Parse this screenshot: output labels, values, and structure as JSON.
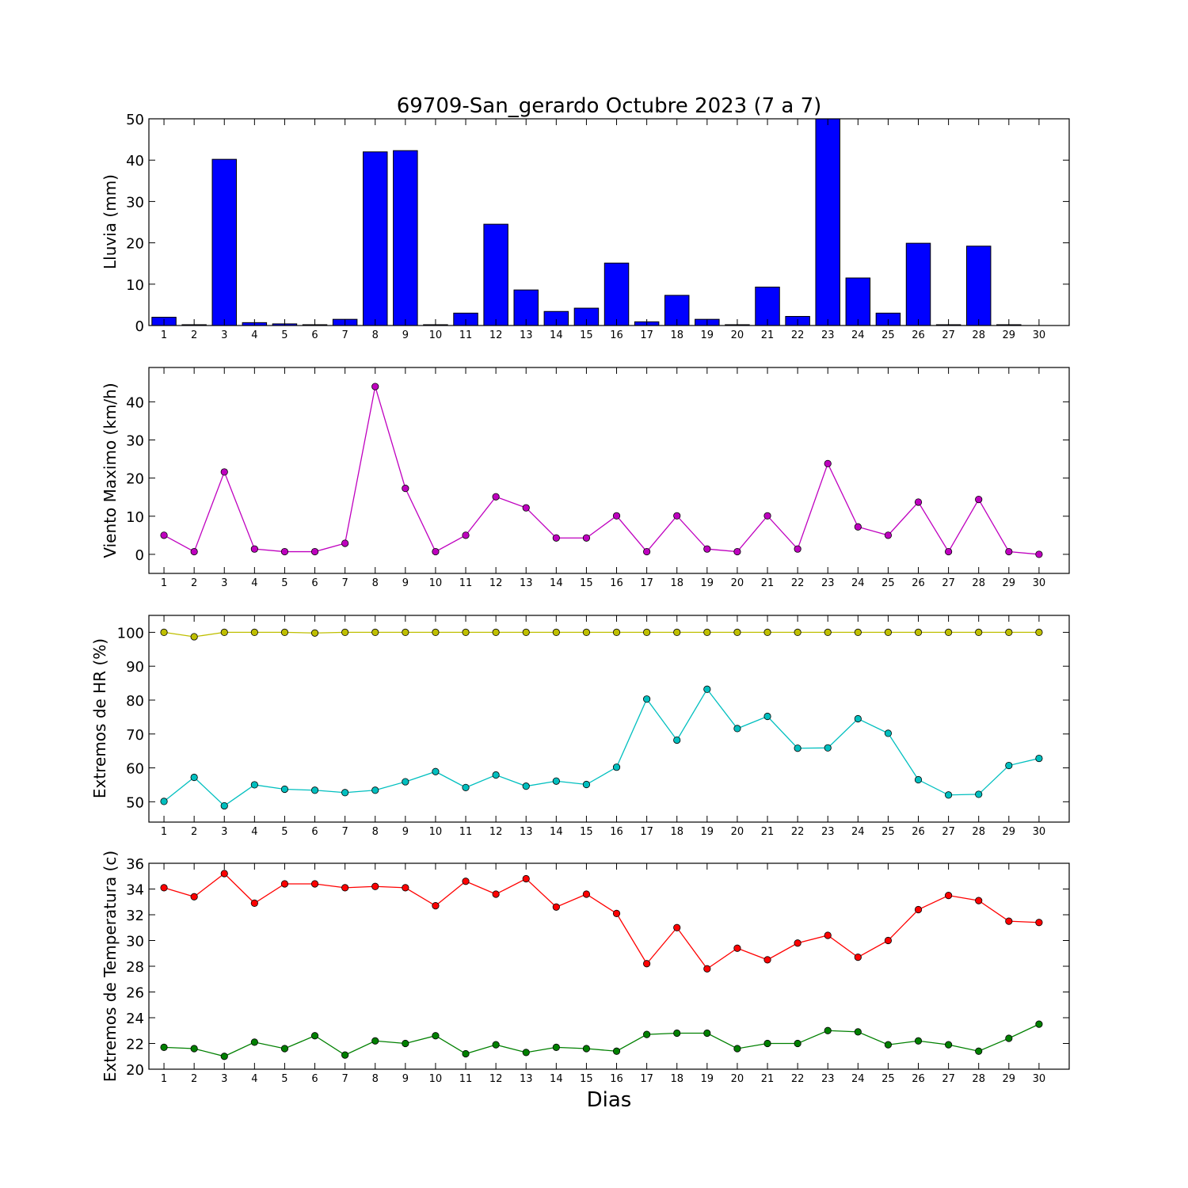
{
  "title": "69709-San_gerardo Octubre 2023  (7 a 7)",
  "xlabel": "Dias",
  "colors": {
    "bar": "#0000ff",
    "viento": "#bf00bf",
    "hr_max": "#bfbf00",
    "hr_min": "#00bfbf",
    "temp_max": "#ff0000",
    "temp_min": "#008000"
  },
  "chart_data": [
    {
      "type": "bar",
      "ylabel": "Lluvia (mm)",
      "ylim": [
        0,
        50
      ],
      "yticks": [
        0,
        10,
        20,
        30,
        40,
        50
      ],
      "categories": [
        "1",
        "2",
        "3",
        "4",
        "5",
        "6",
        "7",
        "8",
        "9",
        "10",
        "11",
        "12",
        "13",
        "14",
        "15",
        "16",
        "17",
        "18",
        "19",
        "20",
        "21",
        "22",
        "23",
        "24",
        "25",
        "26",
        "27",
        "28",
        "29",
        "30"
      ],
      "series": [
        {
          "values": [
            2.0,
            0.2,
            40.2,
            0.7,
            0.4,
            0.2,
            1.5,
            42.0,
            42.3,
            0.2,
            3.0,
            24.5,
            8.6,
            3.4,
            4.2,
            15.1,
            0.9,
            7.3,
            1.5,
            0.2,
            9.3,
            2.2,
            50.0,
            11.5,
            3.0,
            19.9,
            0.2,
            19.2,
            0.2,
            0.0
          ],
          "color": "#0000ff"
        }
      ]
    },
    {
      "type": "line",
      "ylabel": "Viento Maximo (km/h)",
      "ylim": [
        -5,
        49
      ],
      "yticks": [
        0,
        10,
        20,
        30,
        40
      ],
      "categories": [
        "1",
        "2",
        "3",
        "4",
        "5",
        "6",
        "7",
        "8",
        "9",
        "10",
        "11",
        "12",
        "13",
        "14",
        "15",
        "16",
        "17",
        "18",
        "19",
        "20",
        "21",
        "22",
        "23",
        "24",
        "25",
        "26",
        "27",
        "28",
        "29",
        "30"
      ],
      "series": [
        {
          "values": [
            5.0,
            0.7,
            21.6,
            1.4,
            0.7,
            0.7,
            2.9,
            44.0,
            17.3,
            0.7,
            5.0,
            15.1,
            12.2,
            4.3,
            4.3,
            10.1,
            0.7,
            10.1,
            1.4,
            0.7,
            10.1,
            1.4,
            23.8,
            7.2,
            5.0,
            13.7,
            0.7,
            14.4,
            0.7,
            0.0
          ],
          "color": "#bf00bf"
        }
      ]
    },
    {
      "type": "line",
      "ylabel": "Extremos de HR (%)",
      "ylim": [
        44,
        105
      ],
      "yticks": [
        50,
        60,
        70,
        80,
        90,
        100
      ],
      "categories": [
        "1",
        "2",
        "3",
        "4",
        "5",
        "6",
        "7",
        "8",
        "9",
        "10",
        "11",
        "12",
        "13",
        "14",
        "15",
        "16",
        "17",
        "18",
        "19",
        "20",
        "21",
        "22",
        "23",
        "24",
        "25",
        "26",
        "27",
        "28",
        "29",
        "30"
      ],
      "series": [
        {
          "values": [
            100,
            98.7,
            100,
            100,
            100,
            99.8,
            100,
            100,
            100,
            100,
            100,
            100,
            100,
            100,
            100,
            100,
            100,
            100,
            100,
            100,
            100,
            100,
            100,
            100,
            100,
            100,
            100,
            100,
            100,
            100
          ],
          "color": "#bfbf00"
        },
        {
          "values": [
            50.1,
            57.2,
            48.8,
            55.0,
            53.7,
            53.4,
            52.7,
            53.4,
            55.9,
            58.9,
            54.2,
            57.9,
            54.6,
            56.1,
            55.1,
            60.2,
            80.3,
            68.2,
            83.2,
            71.6,
            75.2,
            65.8,
            65.9,
            74.5,
            70.2,
            56.5,
            52.0,
            52.2,
            60.7,
            62.8
          ],
          "color": "#00bfbf"
        }
      ]
    },
    {
      "type": "line",
      "ylabel": "Extremos de Temperatura (c)",
      "ylim": [
        20,
        36
      ],
      "yticks": [
        20,
        22,
        24,
        26,
        28,
        30,
        32,
        34,
        36
      ],
      "categories": [
        "1",
        "2",
        "3",
        "4",
        "5",
        "6",
        "7",
        "8",
        "9",
        "10",
        "11",
        "12",
        "13",
        "14",
        "15",
        "16",
        "17",
        "18",
        "19",
        "20",
        "21",
        "22",
        "23",
        "24",
        "25",
        "26",
        "27",
        "28",
        "29",
        "30"
      ],
      "series": [
        {
          "values": [
            34.1,
            33.4,
            35.2,
            32.9,
            34.4,
            34.4,
            34.1,
            34.2,
            34.1,
            32.7,
            34.6,
            33.6,
            34.8,
            32.6,
            33.6,
            32.1,
            28.2,
            31.0,
            27.8,
            29.4,
            28.5,
            29.8,
            30.4,
            28.7,
            30.0,
            32.4,
            33.5,
            33.1,
            31.5,
            31.4
          ],
          "color": "#ff0000"
        },
        {
          "values": [
            21.7,
            21.6,
            21.0,
            22.1,
            21.6,
            22.6,
            21.1,
            22.2,
            22.0,
            22.6,
            21.2,
            21.9,
            21.3,
            21.7,
            21.6,
            21.4,
            22.7,
            22.8,
            22.8,
            21.6,
            22.0,
            22.0,
            23.0,
            22.9,
            21.9,
            22.2,
            21.9,
            21.4,
            22.4,
            23.5
          ],
          "color": "#008000"
        }
      ]
    }
  ]
}
